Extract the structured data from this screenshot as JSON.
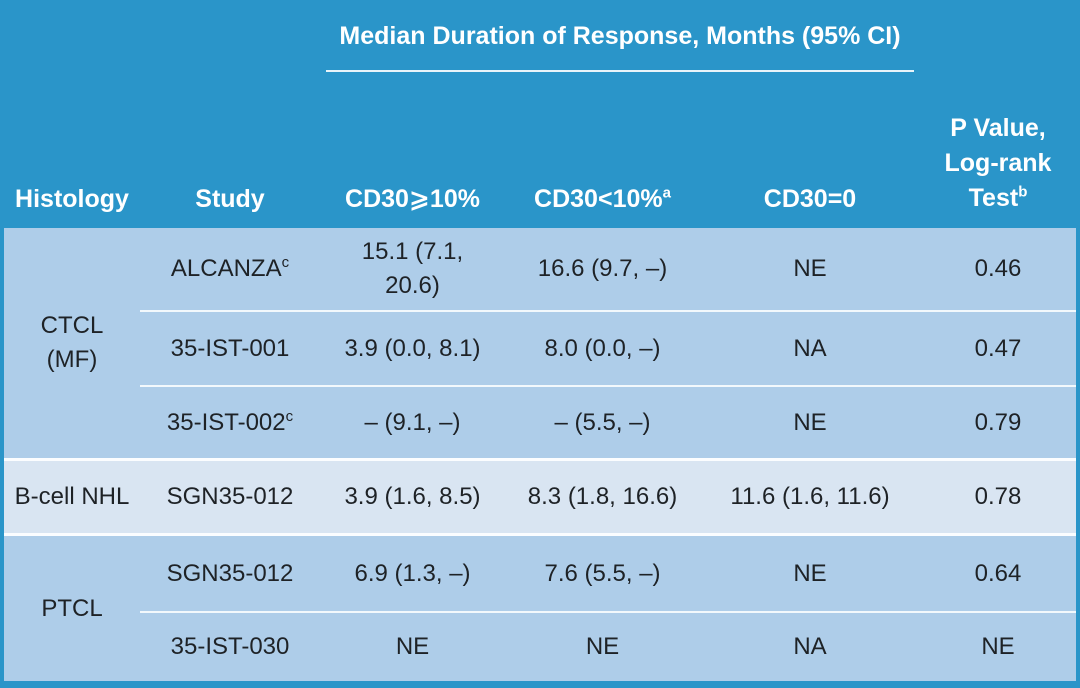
{
  "colors": {
    "header_bg": "#2A95C9",
    "row_bg": "#AECDE9",
    "row_alt_bg": "#D9E5F2",
    "header_text": "#FFFFFF",
    "body_text": "#1E2226",
    "divider": "#FFFFFF"
  },
  "table": {
    "spanning_header": "Median Duration of Response, Months (95% CI)",
    "columns": {
      "histology": "Histology",
      "study": "Study",
      "cd30_ge10": "CD30⩾10%",
      "cd30_lt10": "CD30<10%",
      "cd30_lt10_sup": "a",
      "cd30_zero": "CD30=0",
      "pvalue_line1": "P Value,",
      "pvalue_line2": "Log-rank",
      "pvalue_line3": "Test",
      "pvalue_sup": "b"
    },
    "groups": [
      {
        "histology": "CTCL\n(MF)",
        "rows": [
          {
            "study": "ALCANZA",
            "study_sup": "c",
            "cd30_ge10": "15.1 (7.1,\n20.6)",
            "cd30_lt10": "16.6 (9.7, –)",
            "cd30_zero": "NE",
            "p_value": "0.46"
          },
          {
            "study": "35-IST-001",
            "study_sup": "",
            "cd30_ge10": "3.9 (0.0, 8.1)",
            "cd30_lt10": "8.0 (0.0, –)",
            "cd30_zero": "NA",
            "p_value": "0.47"
          },
          {
            "study": "35-IST-002",
            "study_sup": "c",
            "cd30_ge10": "– (9.1, –)",
            "cd30_lt10": "– (5.5, –)",
            "cd30_zero": "NE",
            "p_value": "0.79"
          }
        ]
      },
      {
        "histology": "B-cell NHL",
        "rows": [
          {
            "study": "SGN35-012",
            "study_sup": "",
            "cd30_ge10": "3.9 (1.6, 8.5)",
            "cd30_lt10": "8.3 (1.8, 16.6)",
            "cd30_zero": "11.6 (1.6, 11.6)",
            "p_value": "0.78"
          }
        ]
      },
      {
        "histology": "PTCL",
        "rows": [
          {
            "study": "SGN35-012",
            "study_sup": "",
            "cd30_ge10": "6.9 (1.3, –)",
            "cd30_lt10": "7.6 (5.5, –)",
            "cd30_zero": "NE",
            "p_value": "0.64"
          },
          {
            "study": "35-IST-030",
            "study_sup": "",
            "cd30_ge10": "NE",
            "cd30_lt10": "NE",
            "cd30_zero": "NA",
            "p_value": "NE"
          }
        ]
      }
    ]
  },
  "chart_data": {
    "type": "table",
    "title": "Median Duration of Response, Months (95% CI)",
    "columns": [
      "Histology",
      "Study",
      "CD30⩾10%",
      "CD30<10%a",
      "CD30=0",
      "P Value, Log-rank Testb"
    ],
    "rows": [
      [
        "CTCL (MF)",
        "ALCANZAc",
        "15.1 (7.1, 20.6)",
        "16.6 (9.7, –)",
        "NE",
        "0.46"
      ],
      [
        "CTCL (MF)",
        "35-IST-001",
        "3.9 (0.0, 8.1)",
        "8.0 (0.0, –)",
        "NA",
        "0.47"
      ],
      [
        "CTCL (MF)",
        "35-IST-002c",
        "– (9.1, –)",
        "– (5.5, –)",
        "NE",
        "0.79"
      ],
      [
        "B-cell NHL",
        "SGN35-012",
        "3.9 (1.6, 8.5)",
        "8.3 (1.8, 16.6)",
        "11.6 (1.6, 11.6)",
        "0.78"
      ],
      [
        "PTCL",
        "SGN35-012",
        "6.9 (1.3, –)",
        "7.6 (5.5, –)",
        "NE",
        "0.64"
      ],
      [
        "PTCL",
        "35-IST-030",
        "NE",
        "NE",
        "NA",
        "NE"
      ]
    ]
  }
}
